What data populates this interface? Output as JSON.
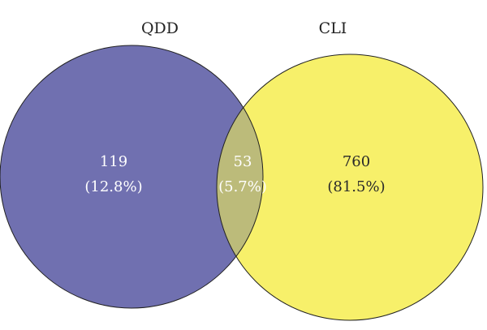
{
  "sets": [
    {
      "name": "QDD",
      "color": "#7070b0"
    },
    {
      "name": "CLI",
      "color": "#f7f06a"
    }
  ],
  "overlap_color": "#bcbb7a",
  "outline_color": "#222222",
  "regions": {
    "qdd_only": {
      "count": "119",
      "percent": "(12.8%)"
    },
    "both": {
      "count": "53",
      "percent": "(5.7%)"
    },
    "cli_only": {
      "count": "760",
      "percent": "(81.5%)"
    }
  }
}
